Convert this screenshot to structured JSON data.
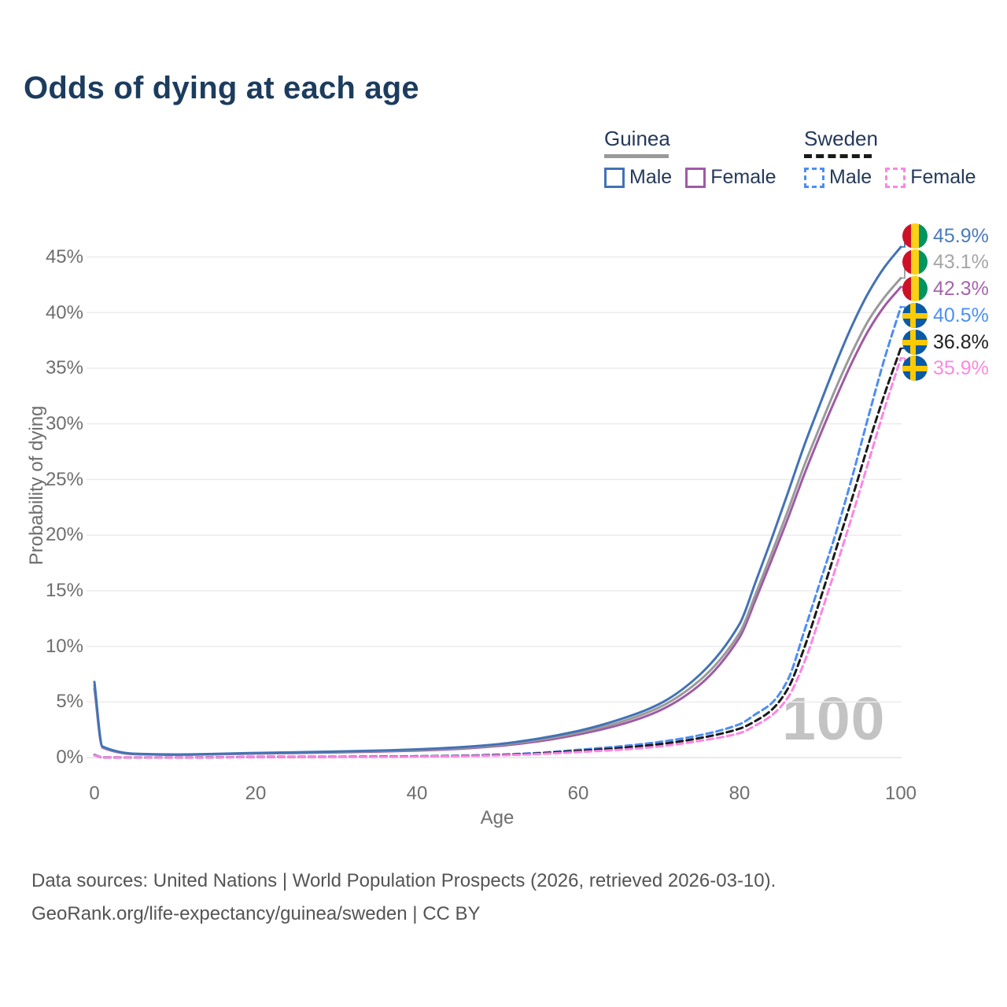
{
  "title": "Odds of dying at each age",
  "legend": {
    "guinea": {
      "name": "Guinea",
      "male": "Male",
      "female": "Female"
    },
    "sweden": {
      "name": "Sweden",
      "male": "Male",
      "female": "Female"
    }
  },
  "watermark": "100",
  "end_labels": [
    {
      "flag": "guinea",
      "value": "45.9%",
      "color": "#4a7bbd"
    },
    {
      "flag": "guinea",
      "value": "43.1%",
      "color": "#a6a6a6"
    },
    {
      "flag": "guinea",
      "value": "42.3%",
      "color": "#a864ad"
    },
    {
      "flag": "sweden",
      "value": "40.5%",
      "color": "#4b90f0"
    },
    {
      "flag": "sweden",
      "value": "36.8%",
      "color": "#1f1f1f"
    },
    {
      "flag": "sweden",
      "value": "35.9%",
      "color": "#fb8ae0"
    }
  ],
  "source": {
    "line1": "Data sources: United Nations | World Population Prospects (2026, retrieved 2026-03-10).",
    "line2": "GeoRank.org/life-expectancy/guinea/sweden | CC BY"
  },
  "chart_data": {
    "type": "line",
    "title": "Odds of dying at each age",
    "xlabel": "Age",
    "ylabel": "Probability of dying",
    "xlim": [
      0,
      100
    ],
    "ylim": [
      0,
      47
    ],
    "grid": "horizontal",
    "legend_position": "top-right",
    "x_ticks": [
      0,
      20,
      40,
      60,
      80,
      100
    ],
    "x_tick_labels": [
      "0",
      "20",
      "40",
      "60",
      "80",
      "100"
    ],
    "y_ticks_percent": [
      0,
      5,
      10,
      15,
      20,
      25,
      30,
      35,
      40,
      45
    ],
    "y_tick_labels": [
      "45%",
      "40%",
      "35%",
      "30%",
      "25%",
      "20%",
      "15%",
      "10%",
      "5%",
      "0%"
    ],
    "hover_age": "100",
    "x": [
      0,
      1,
      5,
      10,
      15,
      20,
      25,
      30,
      35,
      40,
      45,
      50,
      55,
      60,
      65,
      70,
      75,
      80,
      82,
      84,
      86,
      88,
      90,
      92,
      94,
      96,
      98,
      100
    ],
    "series": [
      {
        "name": "Guinea Male",
        "country": "Guinea",
        "sex": "Male",
        "style": "solid",
        "color": "#4372b5",
        "end_value_percent": 45.9,
        "end_label": "45.9%",
        "values": [
          6.8,
          1.0,
          0.35,
          0.28,
          0.33,
          0.42,
          0.48,
          0.55,
          0.63,
          0.74,
          0.92,
          1.2,
          1.7,
          2.4,
          3.4,
          4.8,
          7.4,
          12.0,
          15.8,
          19.7,
          23.8,
          28.0,
          31.8,
          35.5,
          38.9,
          41.8,
          44.1,
          45.9
        ]
      },
      {
        "name": "Guinea Both sexes",
        "country": "Guinea",
        "sex": "Both",
        "style": "solid",
        "color": "#9a9a9a",
        "end_value_percent": 43.1,
        "end_label": "43.1%",
        "values": [
          6.5,
          0.95,
          0.33,
          0.26,
          0.31,
          0.39,
          0.45,
          0.51,
          0.58,
          0.68,
          0.85,
          1.12,
          1.58,
          2.24,
          3.15,
          4.5,
          6.9,
          11.2,
          14.7,
          18.4,
          22.2,
          26.2,
          29.8,
          33.3,
          36.5,
          39.3,
          41.4,
          43.1
        ]
      },
      {
        "name": "Guinea Female",
        "country": "Guinea",
        "sex": "Female",
        "style": "solid",
        "color": "#a05aa5",
        "end_value_percent": 42.3,
        "end_label": "42.3%",
        "values": [
          6.2,
          0.9,
          0.31,
          0.25,
          0.29,
          0.36,
          0.41,
          0.47,
          0.54,
          0.63,
          0.78,
          1.04,
          1.46,
          2.08,
          2.92,
          4.2,
          6.5,
          10.8,
          14.2,
          17.8,
          21.5,
          25.4,
          29.0,
          32.4,
          35.6,
          38.4,
          40.6,
          42.3
        ]
      },
      {
        "name": "Sweden Male",
        "country": "Sweden",
        "sex": "Male",
        "style": "dashed",
        "color": "#4d8df2",
        "end_value_percent": 40.5,
        "end_label": "40.5%",
        "values": [
          0.25,
          0.03,
          0.01,
          0.01,
          0.03,
          0.07,
          0.08,
          0.08,
          0.1,
          0.12,
          0.17,
          0.26,
          0.42,
          0.7,
          1.0,
          1.4,
          2.0,
          3.0,
          3.9,
          4.9,
          7.0,
          11.3,
          15.8,
          20.3,
          25.3,
          30.7,
          35.9,
          40.5
        ]
      },
      {
        "name": "Sweden Both sexes",
        "country": "Sweden",
        "sex": "Both",
        "style": "dashed",
        "color": "#1a1a1a",
        "end_value_percent": 36.8,
        "end_label": "36.8%",
        "values": [
          0.22,
          0.02,
          0.01,
          0.01,
          0.02,
          0.05,
          0.06,
          0.07,
          0.09,
          0.11,
          0.15,
          0.23,
          0.37,
          0.6,
          0.85,
          1.2,
          1.75,
          2.6,
          3.3,
          4.3,
          6.2,
          9.8,
          14.2,
          18.8,
          23.4,
          28.2,
          32.7,
          36.8
        ]
      },
      {
        "name": "Sweden Female",
        "country": "Sweden",
        "sex": "Female",
        "style": "dashed",
        "color": "#fb85e4",
        "end_value_percent": 35.9,
        "end_label": "35.9%",
        "values": [
          0.2,
          0.02,
          0.01,
          0.01,
          0.02,
          0.04,
          0.05,
          0.06,
          0.07,
          0.09,
          0.13,
          0.2,
          0.32,
          0.5,
          0.7,
          1.0,
          1.5,
          2.2,
          2.9,
          3.8,
          5.4,
          8.5,
          12.7,
          17.2,
          21.8,
          26.6,
          31.4,
          35.9
        ]
      }
    ]
  }
}
